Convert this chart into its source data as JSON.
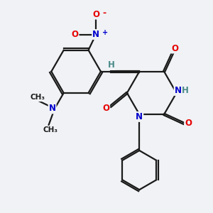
{
  "bg_color": "#f0f2f5",
  "bond_color": "#1a1a1a",
  "bond_width": 1.6,
  "atom_colors": {
    "O": "#e60000",
    "N": "#0000cc",
    "H": "#4a8a8a",
    "C": "#1a1a1a"
  },
  "font_size_atoms": 8.5,
  "font_size_small": 7.5
}
